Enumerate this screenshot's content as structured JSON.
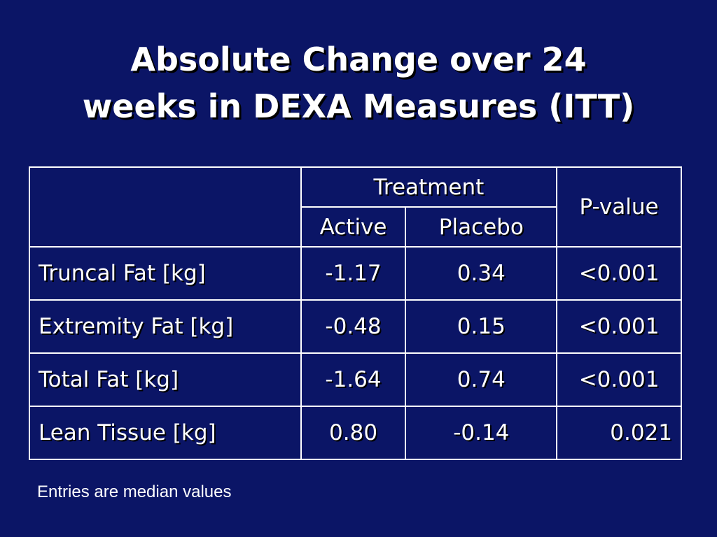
{
  "title": {
    "line1": "Absolute Change over 24",
    "line2": "weeks in DEXA Measures (ITT)"
  },
  "table": {
    "group_header": "Treatment",
    "columns": {
      "active": "Active",
      "placebo": "Placebo",
      "pvalue": "P-value"
    },
    "rows": [
      {
        "label": "Truncal Fat [kg]",
        "active": "-1.17",
        "placebo": "0.34",
        "pvalue": "<0.001"
      },
      {
        "label": "Extremity Fat [kg]",
        "active": "-0.48",
        "placebo": "0.15",
        "pvalue": "<0.001"
      },
      {
        "label": "Total Fat [kg]",
        "active": "-1.64",
        "placebo": "0.74",
        "pvalue": "<0.001"
      },
      {
        "label": "Lean Tissue [kg]",
        "active": "0.80",
        "placebo": "-0.14",
        "pvalue": "0.021"
      }
    ]
  },
  "footnote": "Entries are median values",
  "colors": {
    "background": "#0b1566",
    "text": "#ffffff",
    "border": "#ffffff"
  }
}
